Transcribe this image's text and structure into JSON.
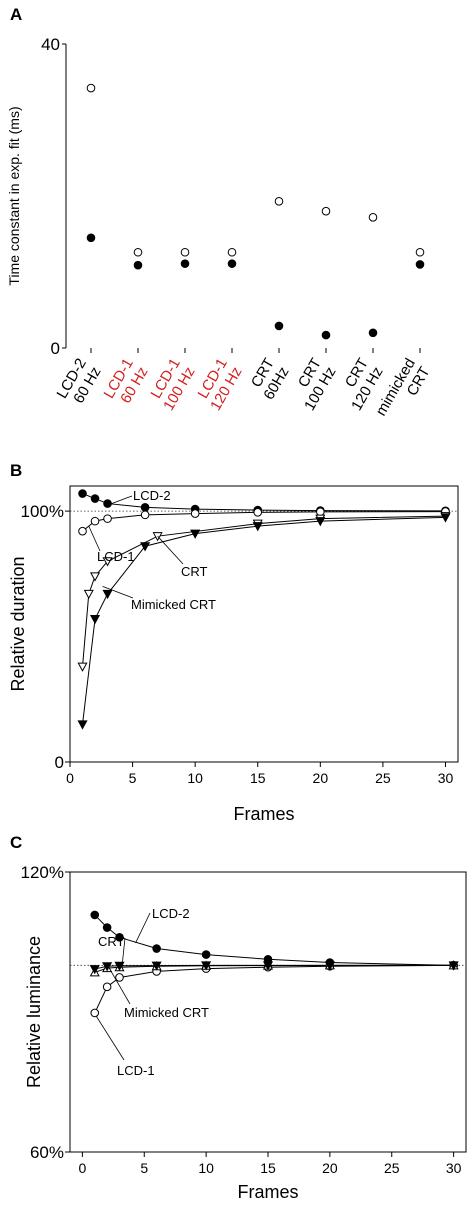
{
  "chart_data": [
    {
      "panel": "A",
      "type": "scatter",
      "ylabel": "Time  constant in exp. fit (ms)",
      "ylim": [
        0,
        40
      ],
      "yticks": [
        "0",
        "40"
      ],
      "categories": [
        {
          "lines": [
            "LCD-2",
            "60 Hz"
          ],
          "color": "#000000"
        },
        {
          "lines": [
            "LCD-1",
            "60 Hz"
          ],
          "color": "#d42020"
        },
        {
          "lines": [
            "LCD-1",
            "100 Hz"
          ],
          "color": "#d42020"
        },
        {
          "lines": [
            "LCD-1",
            "120 Hz"
          ],
          "color": "#d42020"
        },
        {
          "lines": [
            "CRT",
            "60Hz"
          ],
          "color": "#000000"
        },
        {
          "lines": [
            "CRT",
            "100 Hz"
          ],
          "color": "#000000"
        },
        {
          "lines": [
            "CRT",
            "120 Hz"
          ],
          "color": "#000000"
        },
        {
          "lines": [
            "mimicked",
            "CRT"
          ],
          "color": "#000000"
        }
      ],
      "series": [
        {
          "marker": "open-circle",
          "values": [
            34.2,
            12.6,
            12.6,
            12.6,
            19.3,
            18.0,
            17.2,
            12.6
          ]
        },
        {
          "marker": "filled-circle",
          "values": [
            14.5,
            10.9,
            11.1,
            11.1,
            2.9,
            1.7,
            2.0,
            11.0
          ]
        }
      ]
    },
    {
      "panel": "B",
      "type": "line",
      "xlabel": "Frames",
      "ylabel": "Relative duration",
      "xlim": [
        0,
        31
      ],
      "ylim": [
        0,
        1.1
      ],
      "xticks": [
        0,
        5,
        10,
        15,
        20,
        25,
        30
      ],
      "yticks": [
        {
          "v": 0,
          "label": "0"
        },
        {
          "v": 1,
          "label": "100%"
        }
      ],
      "reference_line": 1.0,
      "series": [
        {
          "name": "LCD-2",
          "marker": "filled-circle",
          "x": [
            1,
            2,
            3,
            6,
            10,
            15,
            20,
            30
          ],
          "y": [
            1.07,
            1.05,
            1.03,
            1.015,
            1.008,
            1.004,
            1.002,
            1.001
          ]
        },
        {
          "name": "LCD-1",
          "marker": "open-circle",
          "x": [
            1,
            2,
            3,
            6,
            10,
            15,
            20,
            30
          ],
          "y": [
            0.92,
            0.96,
            0.97,
            0.985,
            0.99,
            0.995,
            0.997,
            0.998
          ]
        },
        {
          "name": "CRT",
          "marker": "open-triangle-down",
          "x": [
            1,
            1.5,
            2,
            3,
            7,
            15,
            20,
            30
          ],
          "y": [
            0.38,
            0.67,
            0.74,
            0.8,
            0.9,
            0.95,
            0.97,
            0.98
          ]
        },
        {
          "name": "Mimicked CRT",
          "marker": "filled-triangle-down",
          "x": [
            1,
            2,
            3,
            6,
            10,
            15,
            20,
            30
          ],
          "y": [
            0.15,
            0.57,
            0.67,
            0.86,
            0.91,
            0.94,
            0.96,
            0.975
          ]
        }
      ],
      "annotations": [
        {
          "text": "LCD-2",
          "series": "LCD-2"
        },
        {
          "text": "LCD-1",
          "series": "LCD-1"
        },
        {
          "text": "CRT",
          "series": "CRT"
        },
        {
          "text": "Mimicked CRT",
          "series": "Mimicked CRT"
        }
      ]
    },
    {
      "panel": "C",
      "type": "line",
      "xlabel": "Frames",
      "ylabel": "Relative luminance",
      "xlim": [
        -1,
        31
      ],
      "ylim": [
        60,
        120
      ],
      "xticks": [
        0,
        5,
        10,
        15,
        20,
        25,
        30
      ],
      "yticks": [
        {
          "v": 60,
          "label": "60%"
        },
        {
          "v": 120,
          "label": "120%"
        }
      ],
      "reference_line": 100,
      "series": [
        {
          "name": "LCD-2",
          "marker": "filled-circle",
          "x": [
            1,
            2,
            3,
            6,
            10,
            15,
            20,
            30
          ],
          "y": [
            110.8,
            108.1,
            106.0,
            103.6,
            102.3,
            101.3,
            100.6,
            100.0
          ]
        },
        {
          "name": "LCD-1",
          "marker": "open-circle",
          "x": [
            1,
            2,
            3,
            6,
            10,
            15,
            20,
            30
          ],
          "y": [
            89.8,
            95.4,
            97.4,
            98.7,
            99.3,
            99.6,
            99.8,
            100.0
          ]
        },
        {
          "name": "CRT",
          "marker": "open-triangle-up",
          "x": [
            1,
            2,
            3,
            6,
            10,
            15,
            20,
            30
          ],
          "y": [
            98.5,
            99.4,
            99.6,
            99.8,
            99.9,
            99.95,
            99.98,
            100.0
          ]
        },
        {
          "name": "Mimicked CRT",
          "marker": "filled-triangle-down",
          "x": [
            1,
            2,
            3,
            6,
            10,
            15,
            20,
            30
          ],
          "y": [
            99.2,
            99.8,
            99.9,
            99.95,
            99.98,
            99.99,
            99.99,
            100.0
          ]
        }
      ],
      "annotations": [
        {
          "text": "LCD-2",
          "series": "LCD-2"
        },
        {
          "text": "CRT",
          "series": "CRT"
        },
        {
          "text": "Mimicked CRT",
          "series": "Mimicked CRT"
        },
        {
          "text": "LCD-1",
          "series": "LCD-1"
        }
      ]
    }
  ]
}
